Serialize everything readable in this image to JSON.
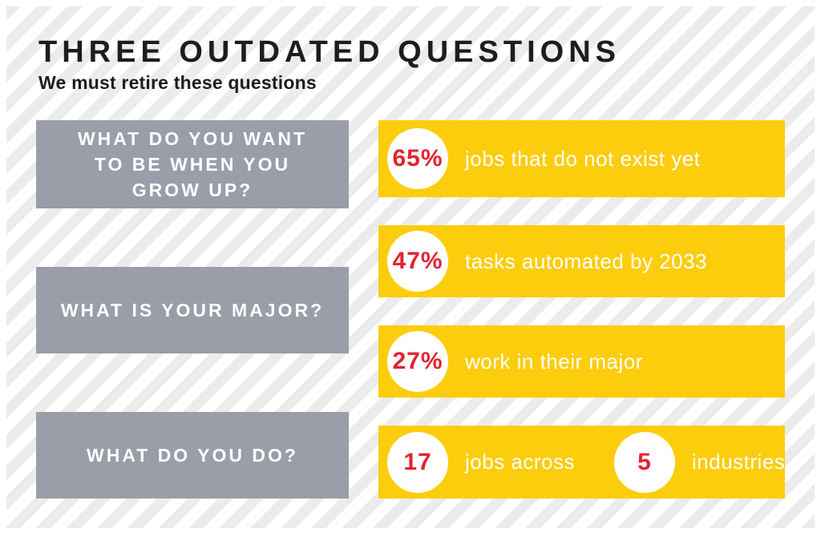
{
  "header": {
    "title": "THREE OUTDATED QUESTIONS",
    "subtitle": "We must retire these questions"
  },
  "colors": {
    "yellow": "#fccd0d",
    "gray": "#999ea8",
    "red": "#e2232f",
    "ink": "#1d1d1b",
    "stripe": "#ececec"
  },
  "questions": [
    {
      "lines": [
        "WHAT DO YOU WANT",
        "TO BE WHEN YOU",
        "GROW UP?"
      ]
    },
    {
      "lines": [
        "WHAT IS YOUR MAJOR?"
      ]
    },
    {
      "lines": [
        "WHAT DO YOU DO?"
      ]
    }
  ],
  "stats": [
    {
      "items": [
        {
          "value": "65%",
          "label": "jobs that do not exist yet"
        }
      ]
    },
    {
      "items": [
        {
          "value": "47%",
          "label": "tasks automated by 2033"
        }
      ]
    },
    {
      "items": [
        {
          "value": "27%",
          "label": "work in their major"
        }
      ]
    },
    {
      "items": [
        {
          "value": "17",
          "label": "jobs across"
        },
        {
          "value": "5",
          "label": "industries"
        }
      ]
    }
  ],
  "chart_data": {
    "type": "table",
    "title": "THREE OUTDATED QUESTIONS",
    "subtitle": "We must retire these questions",
    "rows": [
      {
        "question": "WHAT DO YOU WANT TO BE WHEN YOU GROW UP?",
        "stats": [
          {
            "value": "65%",
            "label": "jobs that do not exist yet"
          }
        ]
      },
      {
        "question": "WHAT IS YOUR MAJOR?",
        "stats": [
          {
            "value": "47%",
            "label": "tasks automated by 2033"
          },
          {
            "value": "27%",
            "label": "work in their major"
          }
        ]
      },
      {
        "question": "WHAT DO YOU DO?",
        "stats": [
          {
            "value": "17",
            "label": "jobs across"
          },
          {
            "value": "5",
            "label": "industries"
          }
        ]
      }
    ]
  }
}
